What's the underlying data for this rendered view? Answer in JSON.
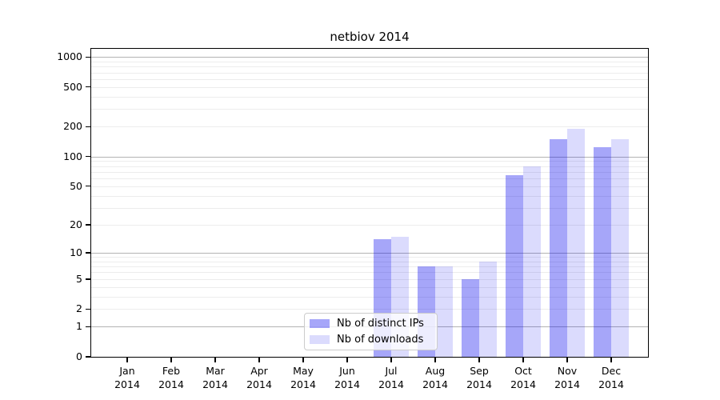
{
  "chart_data": {
    "type": "bar",
    "title": "netbiov 2014",
    "categories": [
      "Jan",
      "Feb",
      "Mar",
      "Apr",
      "May",
      "Jun",
      "Jul",
      "Aug",
      "Sep",
      "Oct",
      "Nov",
      "Dec"
    ],
    "category_year": "2014",
    "series": [
      {
        "name": "Nb of distinct IPs",
        "values": [
          0,
          0,
          0,
          0,
          0,
          0,
          14,
          7,
          5,
          65,
          150,
          125
        ],
        "fill": "rgba(0,0,238,0.35)"
      },
      {
        "name": "Nb of downloads",
        "values": [
          0,
          0,
          0,
          0,
          0,
          0,
          15,
          7,
          8,
          80,
          190,
          150
        ],
        "fill": "rgba(0,0,238,0.14)"
      }
    ],
    "y_axis": {
      "ticks": [
        0,
        1,
        2,
        5,
        10,
        20,
        50,
        100,
        200,
        500,
        1000
      ],
      "scale": "log10(1+x)",
      "major_gridlines": [
        1,
        10,
        100,
        1000
      ],
      "ylim": [
        0,
        1250
      ]
    },
    "grid": true,
    "legend_position": "lower center inside",
    "colors": {
      "major_grid": "#b3b3b3",
      "minor_grid": "#ececec",
      "spine": "#000000",
      "text": "#000000"
    }
  }
}
